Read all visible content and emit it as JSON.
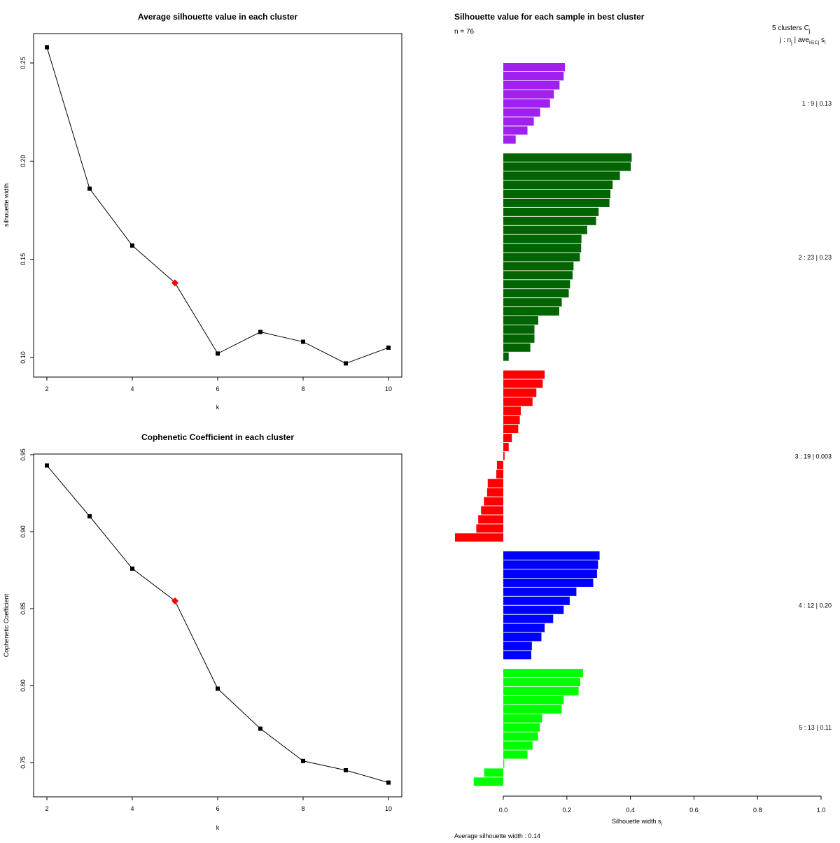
{
  "chart_data": [
    {
      "type": "line",
      "title": "Average silhouette value in each cluster",
      "xlabel": "k",
      "ylabel": "silhouette width",
      "xlim": [
        2,
        10
      ],
      "ylim": [
        0.09,
        0.265
      ],
      "x": [
        2,
        3,
        4,
        5,
        6,
        7,
        8,
        9,
        10
      ],
      "y": [
        0.258,
        0.186,
        0.157,
        0.138,
        0.102,
        0.113,
        0.108,
        0.097,
        0.105
      ],
      "highlight_x": 5,
      "xticks": [
        "2",
        "4",
        "6",
        "8",
        "10"
      ],
      "yticks": [
        "0.10",
        "0.15",
        "0.20",
        "0.25"
      ],
      "line_color": "#000000",
      "highlight_color": "#ff0000"
    },
    {
      "type": "line",
      "title": "Cophenetic Coefficient in each cluster",
      "xlabel": "k",
      "ylabel": "Cophenetic Coefficient",
      "xlim": [
        2,
        10
      ],
      "ylim": [
        0.727,
        0.952
      ],
      "x": [
        2,
        3,
        4,
        5,
        6,
        7,
        8,
        9,
        10
      ],
      "y": [
        0.943,
        0.91,
        0.876,
        0.855,
        0.798,
        0.772,
        0.751,
        0.745,
        0.737
      ],
      "highlight_x": 5,
      "xticks": [
        "2",
        "4",
        "6",
        "8",
        "10"
      ],
      "yticks": [
        "0.75",
        "0.80",
        "0.85",
        "0.90",
        "0.95"
      ],
      "line_color": "#000000",
      "highlight_color": "#ff0000"
    },
    {
      "type": "bar",
      "orientation": "horizontal",
      "title": "Silhouette value for each sample in best cluster",
      "n_label": "n = 76",
      "header_line1": "5  clusters  C",
      "header_sub": "j",
      "header_line2": "j :  n",
      "header_line2_sub": "j",
      "header_line2_rest": " | ave",
      "header_line2_sub2": "i∈Cj",
      "header_line2_end": " s",
      "header_line2_end_sub": "i",
      "xlabel": "Silhouette width s",
      "xlabel_sub": "i",
      "xlim": [
        -0.155,
        1.0
      ],
      "xticks": [
        "0.0",
        "0.2",
        "0.4",
        "0.6",
        "0.8",
        "1.0"
      ],
      "xtick_values": [
        0,
        0.2,
        0.4,
        0.6,
        0.8,
        1.0
      ],
      "average_label": "Average silhouette width :  0.14",
      "clusters": [
        {
          "label": "1 :   9  |  0.13",
          "color": "#a020f0",
          "values": [
            0.194,
            0.19,
            0.177,
            0.159,
            0.147,
            0.116,
            0.096,
            0.076,
            0.039
          ]
        },
        {
          "label": "2 :   23  |  0.23",
          "color": "#006400",
          "values": [
            0.404,
            0.401,
            0.367,
            0.344,
            0.337,
            0.334,
            0.3,
            0.292,
            0.264,
            0.246,
            0.245,
            0.241,
            0.221,
            0.218,
            0.21,
            0.206,
            0.184,
            0.176,
            0.11,
            0.098,
            0.098,
            0.085,
            0.017
          ]
        },
        {
          "label": "3 :   19  |  0.003",
          "color": "#ff0000",
          "values": [
            0.13,
            0.124,
            0.104,
            0.092,
            0.055,
            0.052,
            0.047,
            0.027,
            0.017,
            0.004,
            -0.02,
            -0.022,
            -0.049,
            -0.051,
            -0.061,
            -0.07,
            -0.079,
            -0.085,
            -0.152
          ]
        },
        {
          "label": "4 :   12  |  0.20",
          "color": "#0000ff",
          "values": [
            0.303,
            0.298,
            0.295,
            0.283,
            0.23,
            0.209,
            0.19,
            0.157,
            0.13,
            0.12,
            0.09,
            0.088
          ]
        },
        {
          "label": "5 :   13  |  0.11",
          "color": "#00ff00",
          "values": [
            0.251,
            0.242,
            0.237,
            0.19,
            0.184,
            0.122,
            0.115,
            0.109,
            0.092,
            0.076,
            0.003,
            -0.06,
            -0.093
          ]
        }
      ]
    }
  ]
}
